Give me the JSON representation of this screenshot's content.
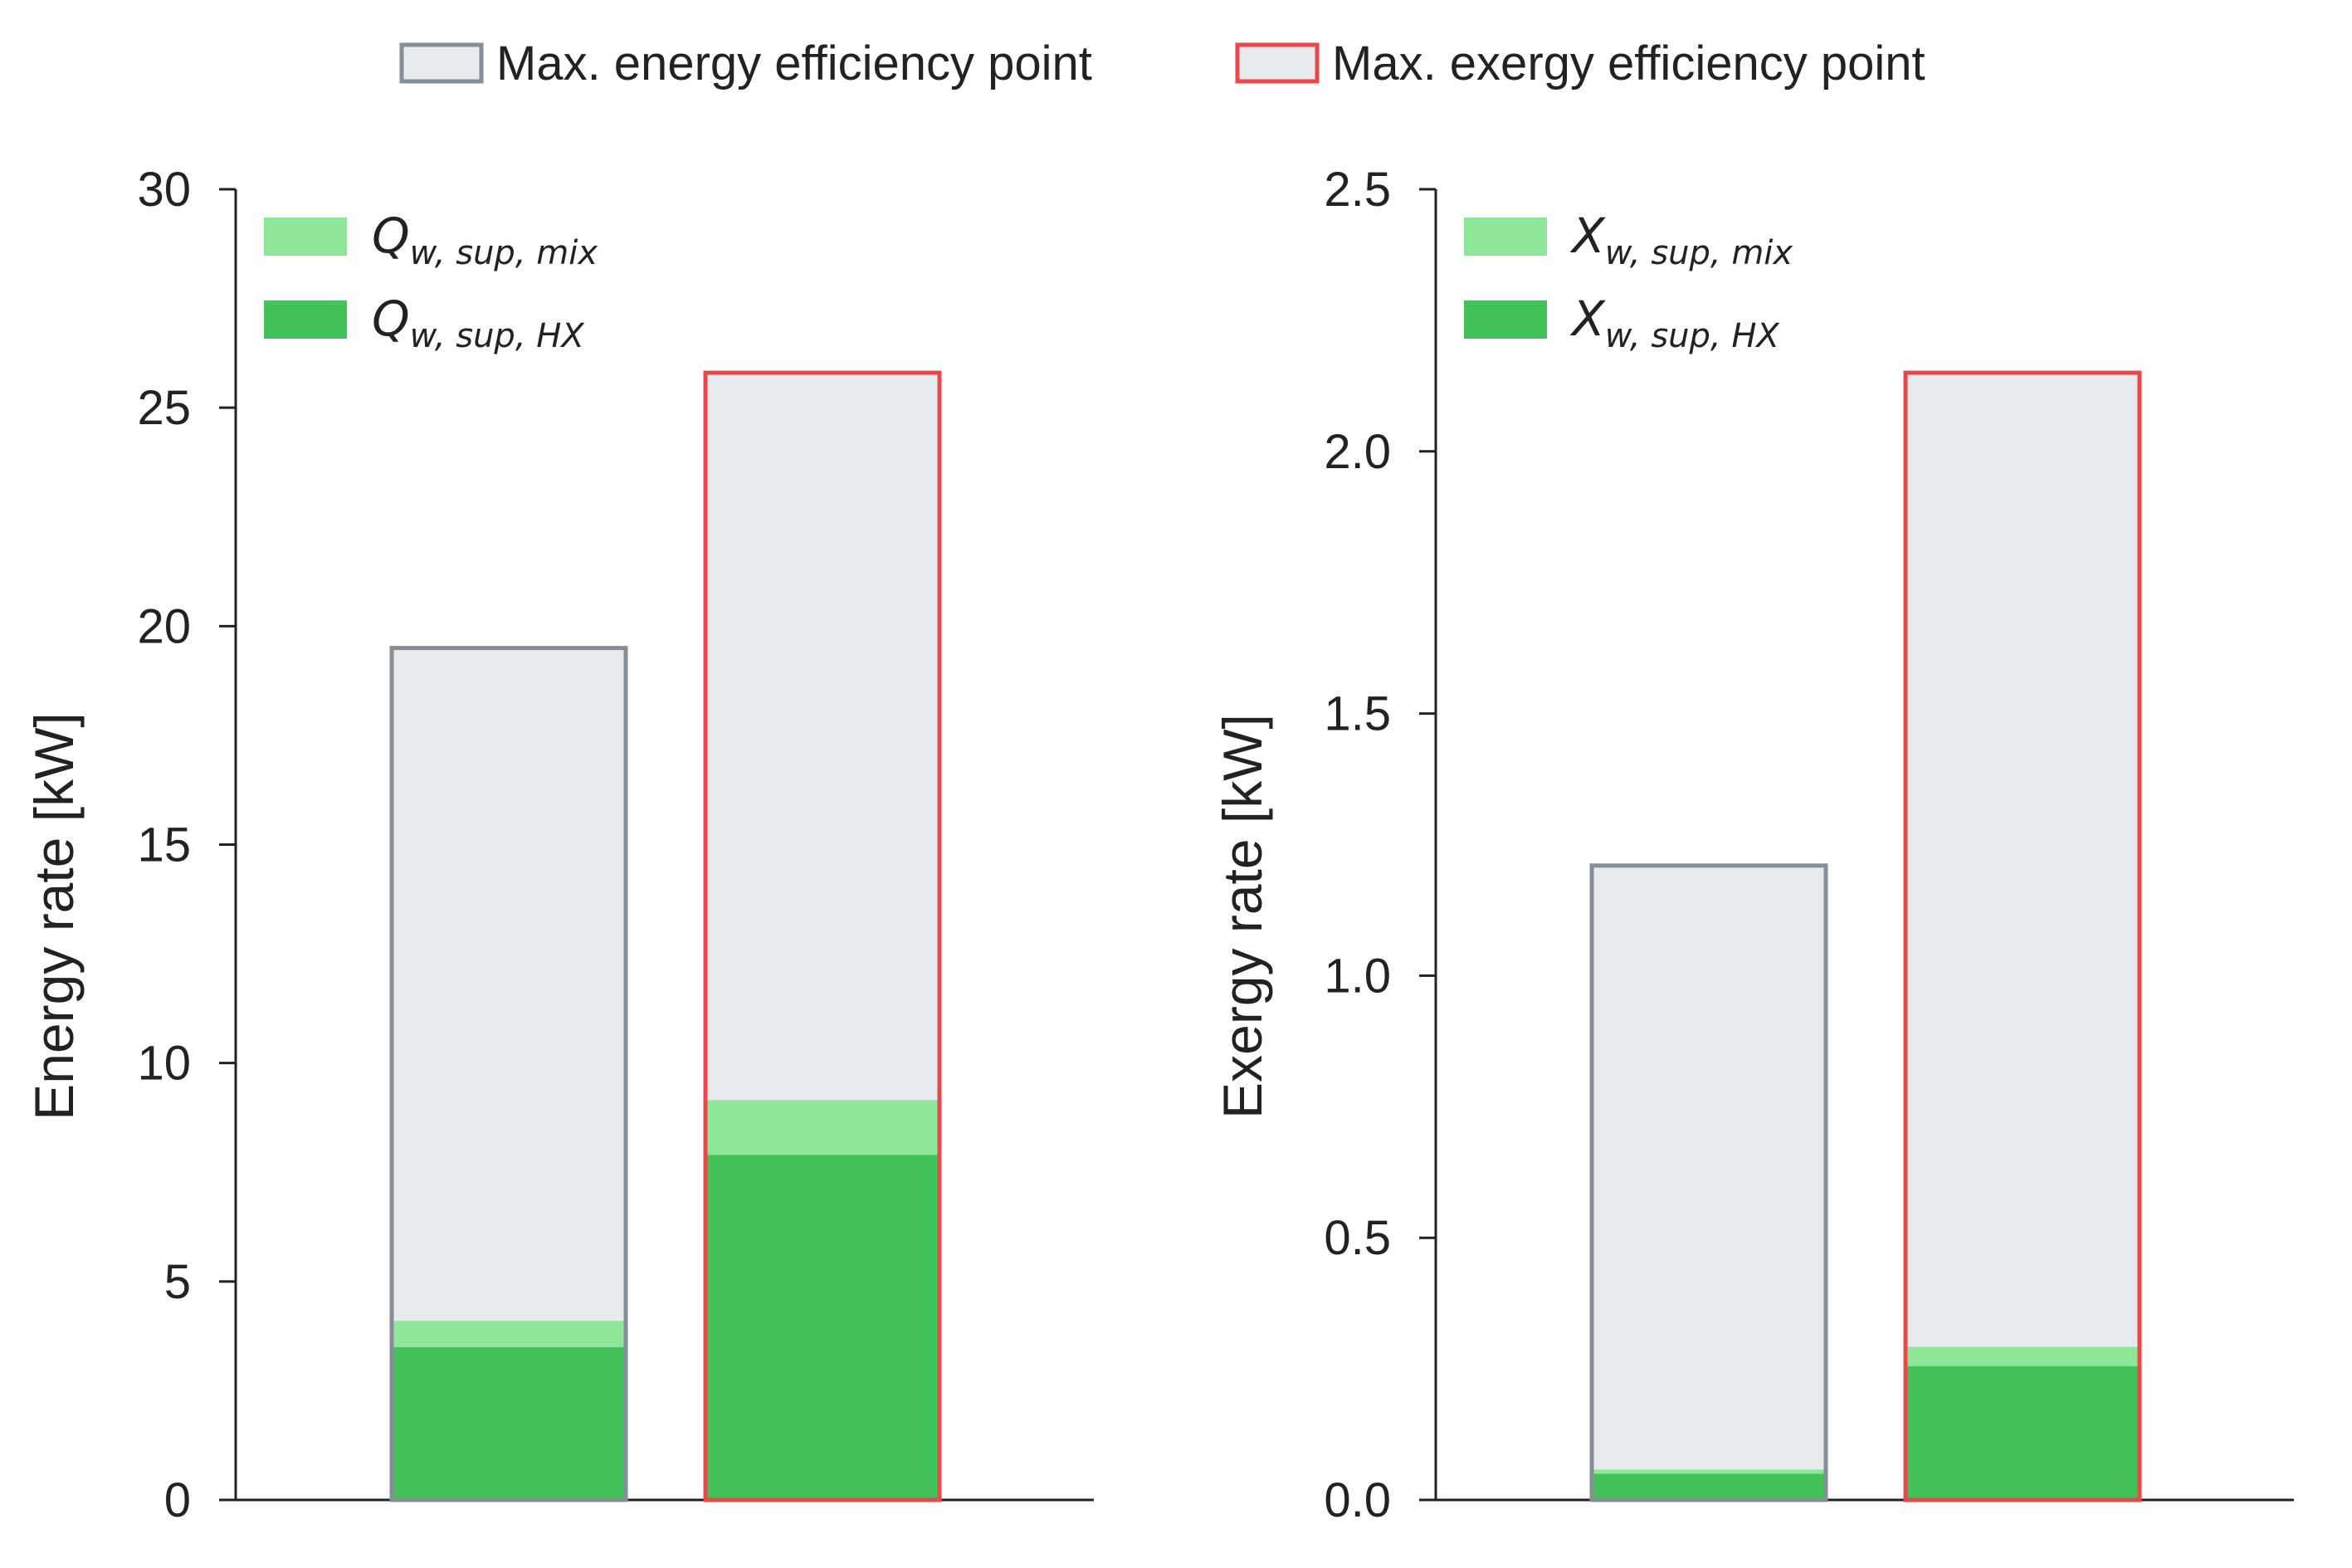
{
  "legend": {
    "energy_point": {
      "label": "Max. energy efficiency point",
      "fill": "#e8ebee",
      "stroke": "#858d95"
    },
    "exergy_point": {
      "label": "Max. exergy efficiency point",
      "fill": "#e8ebee",
      "stroke": "#e8474c"
    }
  },
  "colors": {
    "mix": "#8ee798",
    "hx": "#43c159",
    "axis": "#222222"
  },
  "chart_data": [
    {
      "type": "bar",
      "ylabel": "Energy rate [kW]",
      "ylim": [
        0,
        30
      ],
      "yticks": [
        0,
        5,
        10,
        15,
        20,
        25,
        30
      ],
      "tick_labels": [
        "0",
        "5",
        "10",
        "15",
        "20",
        "25",
        "30"
      ],
      "inner_legend": [
        {
          "key": "mix",
          "base": "Q",
          "subscript": "w, sup, mix"
        },
        {
          "key": "hx",
          "base": "Q",
          "subscript": "w, sup, HX"
        }
      ],
      "categories": [
        "Max. energy efficiency point",
        "Max. exergy efficiency point"
      ],
      "total": [
        19.5,
        25.8
      ],
      "series": [
        {
          "key": "hx",
          "values": [
            3.5,
            7.9
          ]
        },
        {
          "key": "mix",
          "values": [
            0.6,
            1.25
          ]
        }
      ]
    },
    {
      "type": "bar",
      "ylabel": "Exergy rate [kW]",
      "ylim": [
        0,
        2.5
      ],
      "yticks": [
        0,
        0.5,
        1.0,
        1.5,
        2.0,
        2.5
      ],
      "tick_labels": [
        "0.0",
        "0.5",
        "1.0",
        "1.5",
        "2.0",
        "2.5"
      ],
      "inner_legend": [
        {
          "key": "mix",
          "base": "X",
          "subscript": "w, sup, mix"
        },
        {
          "key": "hx",
          "base": "X",
          "subscript": "w, sup, HX"
        }
      ],
      "categories": [
        "Max. energy efficiency point",
        "Max. exergy efficiency point"
      ],
      "total": [
        1.21,
        2.15
      ],
      "series": [
        {
          "key": "hx",
          "values": [
            0.05,
            0.255
          ]
        },
        {
          "key": "mix",
          "values": [
            0.008,
            0.037
          ]
        }
      ]
    }
  ]
}
